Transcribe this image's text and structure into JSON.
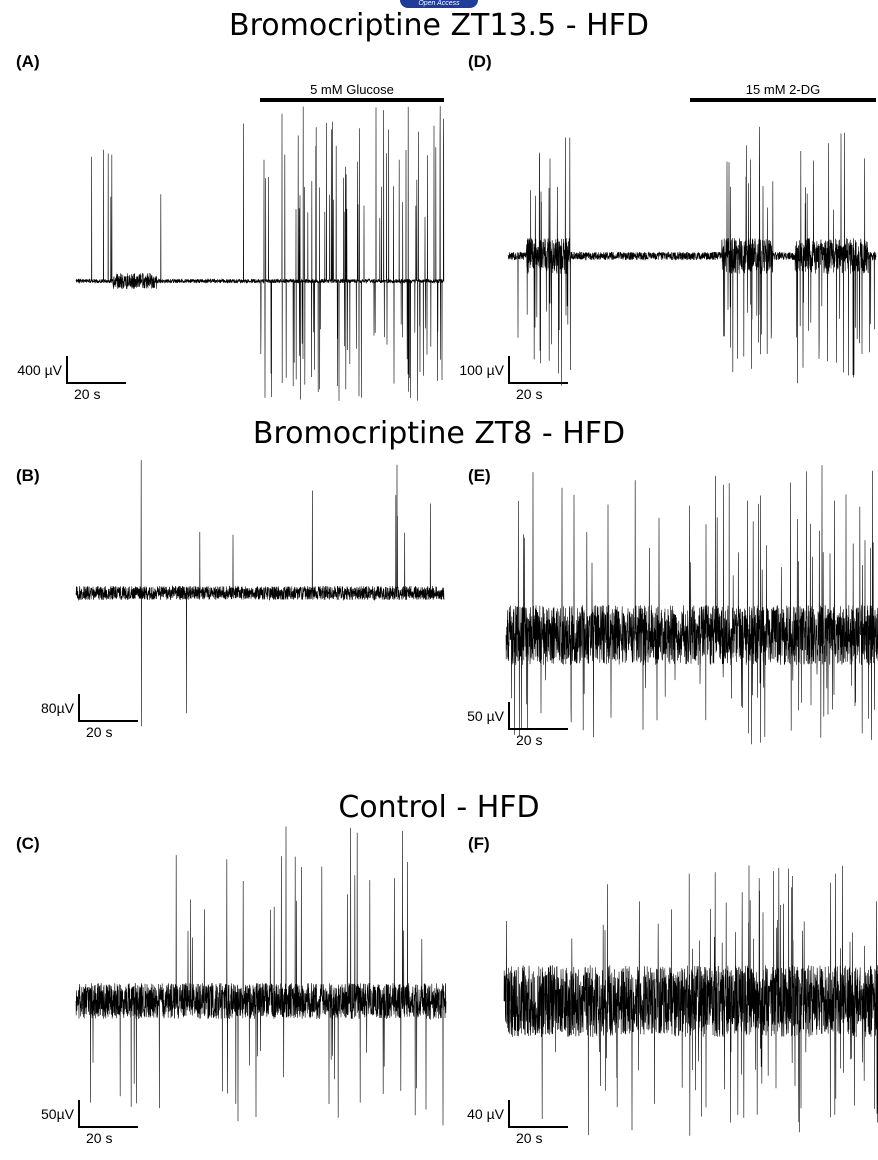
{
  "badge": "Open Access",
  "sections": {
    "top": "Bromocriptine ZT13.5 - HFD",
    "middle": "Bromocriptine ZT8 - HFD",
    "bottom": "Control - HFD"
  },
  "panels": {
    "A": {
      "label": "(A)",
      "voltage": "400 µV",
      "time": "20 s",
      "treatment": "5 mM Glucose"
    },
    "B": {
      "label": "(B)",
      "voltage": "80µV",
      "time": "20 s"
    },
    "C": {
      "label": "(C)",
      "voltage": "50µV",
      "time": "20 s"
    },
    "D": {
      "label": "(D)",
      "voltage": "100 µV",
      "time": "20 s",
      "treatment": "15 mM 2-DG"
    },
    "E": {
      "label": "(E)",
      "voltage": "50 µV",
      "time": "20 s"
    },
    "F": {
      "label": "(F)",
      "voltage": "40 µV",
      "time": "20 s"
    }
  }
}
